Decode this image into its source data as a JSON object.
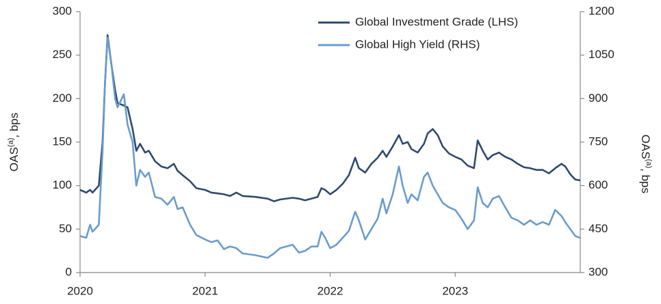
{
  "chart_data": {
    "type": "line",
    "ylabel": [
      "OAS",
      "(a)",
      ", bps"
    ],
    "y2label": [
      "OAS",
      "(a)",
      ", bps"
    ],
    "x": [
      2020.0,
      2020.05,
      2020.08,
      2020.1,
      2020.15,
      2020.18,
      2020.2,
      2020.22,
      2020.25,
      2020.28,
      2020.3,
      2020.35,
      2020.38,
      2020.42,
      2020.45,
      2020.48,
      2020.52,
      2020.55,
      2020.6,
      2020.65,
      2020.7,
      2020.75,
      2020.78,
      2020.82,
      2020.88,
      2020.93,
      2021.0,
      2021.05,
      2021.1,
      2021.15,
      2021.2,
      2021.25,
      2021.3,
      2021.4,
      2021.5,
      2021.55,
      2021.6,
      2021.7,
      2021.75,
      2021.8,
      2021.85,
      2021.9,
      2021.93,
      2021.96,
      2022.0,
      2022.05,
      2022.1,
      2022.15,
      2022.2,
      2022.23,
      2022.28,
      2022.33,
      2022.38,
      2022.42,
      2022.45,
      2022.5,
      2022.55,
      2022.58,
      2022.62,
      2022.65,
      2022.7,
      2022.75,
      2022.78,
      2022.82,
      2022.86,
      2022.9,
      2022.95,
      2023.0,
      2023.05,
      2023.1,
      2023.15,
      2023.18,
      2023.22,
      2023.26,
      2023.3,
      2023.35,
      2023.4,
      2023.45,
      2023.5,
      2023.55,
      2023.6,
      2023.65,
      2023.7,
      2023.75,
      2023.8,
      2023.85,
      2023.88,
      2023.92,
      2023.96,
      2024.0
    ],
    "xlim": [
      2020,
      2024
    ],
    "xticks": [
      2020,
      2021,
      2022,
      2023
    ],
    "ylim": [
      0,
      300
    ],
    "yticks": [
      0,
      50,
      100,
      150,
      200,
      250,
      300
    ],
    "y2lim": [
      300,
      1200
    ],
    "y2ticks": [
      300,
      450,
      600,
      750,
      900,
      1050,
      1200
    ],
    "legend": "upper right",
    "series": [
      {
        "name": "Global Investment Grade (LHS)",
        "color": "#2e4a70",
        "axis": "y",
        "values": [
          95,
          92,
          95,
          92,
          100,
          150,
          220,
          273,
          240,
          210,
          195,
          192,
          190,
          165,
          140,
          148,
          138,
          140,
          128,
          122,
          120,
          125,
          117,
          112,
          105,
          97,
          95,
          92,
          91,
          90,
          88,
          92,
          88,
          87,
          85,
          82,
          84,
          86,
          85,
          83,
          85,
          87,
          97,
          95,
          90,
          95,
          102,
          112,
          132,
          120,
          115,
          125,
          132,
          140,
          133,
          145,
          158,
          148,
          150,
          142,
          138,
          148,
          160,
          165,
          158,
          145,
          137,
          133,
          130,
          123,
          120,
          152,
          140,
          130,
          135,
          138,
          133,
          130,
          125,
          121,
          120,
          118,
          118,
          114,
          120,
          125,
          122,
          113,
          107,
          106
        ]
      },
      {
        "name": "Global High Yield (RHS)",
        "color": "#6a9ccb",
        "axis": "y2",
        "values": [
          426,
          420,
          465,
          441,
          465,
          720,
          960,
          1110,
          1020,
          900,
          870,
          915,
          810,
          750,
          600,
          654,
          630,
          645,
          561,
          555,
          534,
          561,
          519,
          525,
          465,
          429,
          414,
          405,
          411,
          381,
          390,
          384,
          366,
          360,
          351,
          366,
          384,
          396,
          369,
          375,
          390,
          390,
          441,
          420,
          384,
          396,
          420,
          444,
          510,
          480,
          414,
          450,
          486,
          555,
          504,
          570,
          666,
          600,
          540,
          570,
          549,
          630,
          645,
          600,
          570,
          540,
          525,
          516,
          486,
          450,
          480,
          594,
          540,
          525,
          555,
          564,
          525,
          489,
          480,
          465,
          480,
          465,
          474,
          465,
          516,
          495,
          474,
          450,
          426,
          420
        ]
      }
    ]
  }
}
